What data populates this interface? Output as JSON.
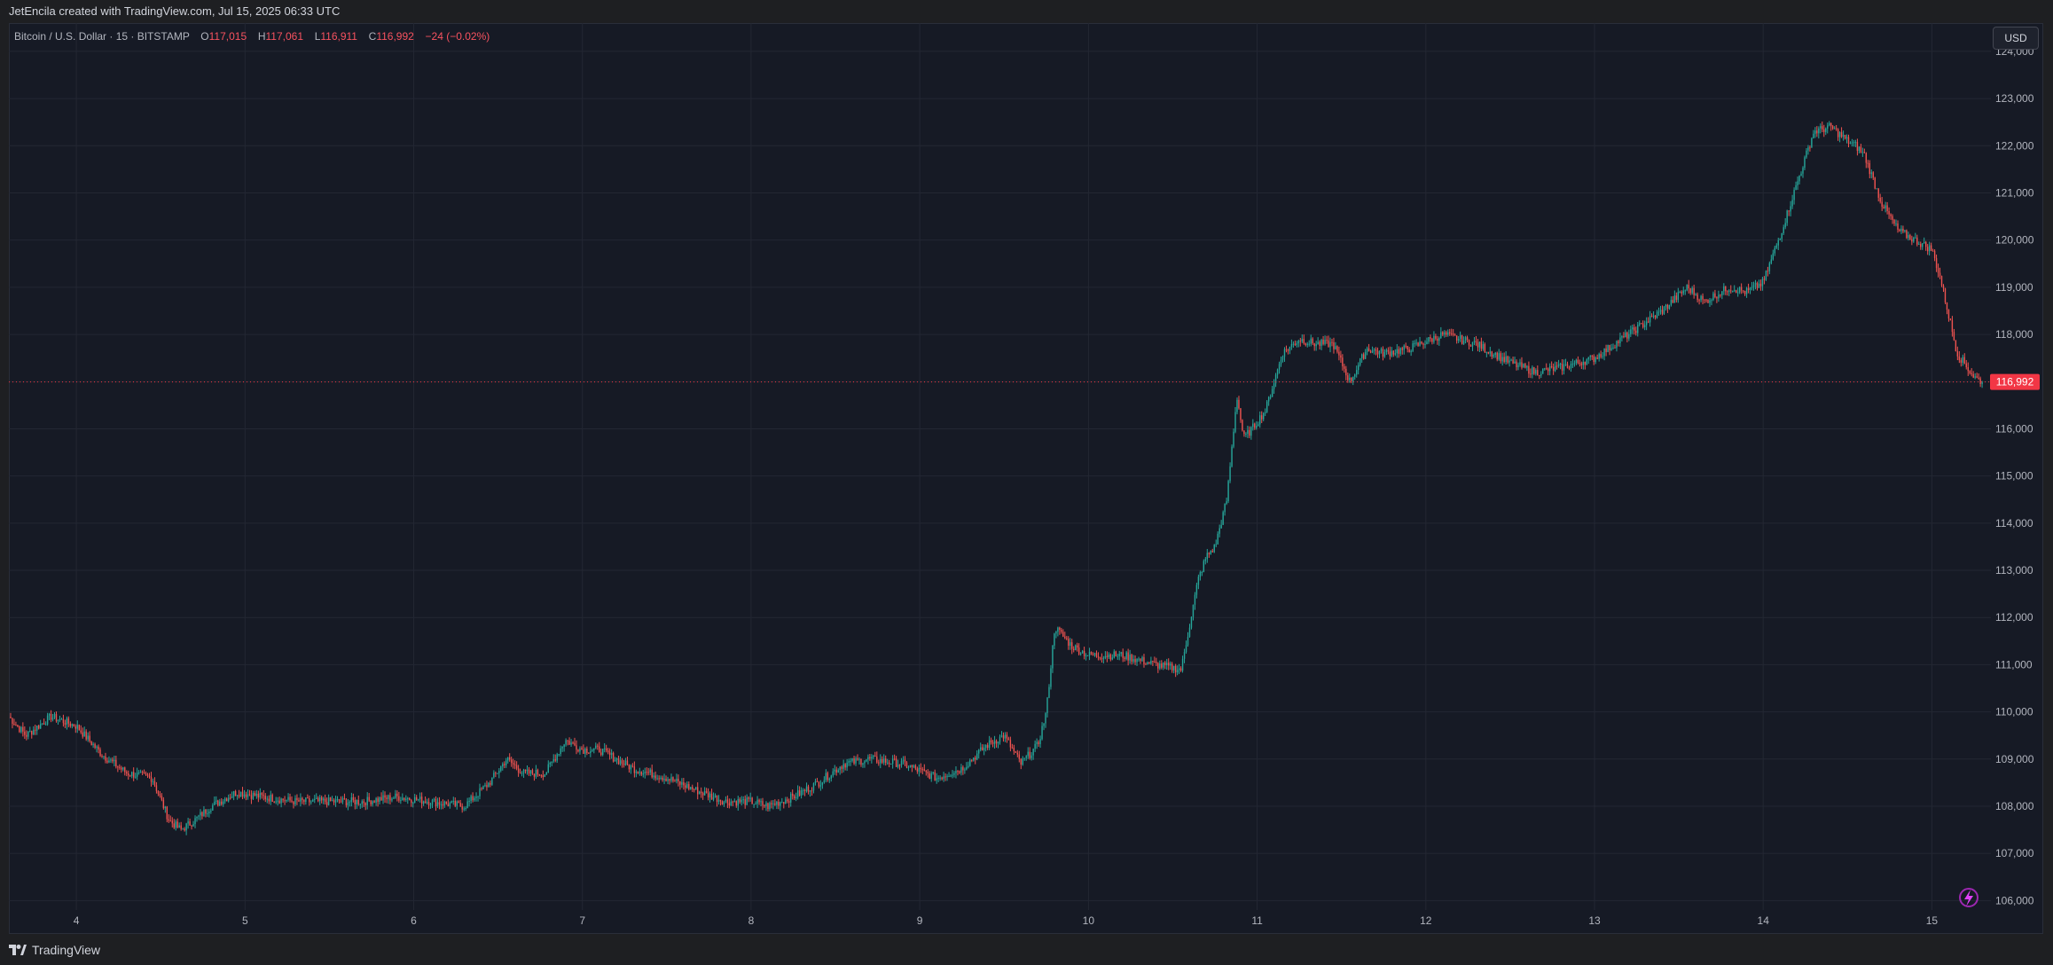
{
  "header": {
    "caption": "JetEncila created with TradingView.com, Jul 15, 2025 06:33 UTC"
  },
  "legend": {
    "symbol": "Bitcoin / U.S. Dollar · 15 · BITSTAMP",
    "open_label": "O",
    "open": "117,015",
    "high_label": "H",
    "high": "117,061",
    "low_label": "L",
    "low": "116,911",
    "close_label": "C",
    "close": "116,992",
    "change": "−24 (−0.02%)"
  },
  "currency_button": "USD",
  "footer": {
    "brand": "TradingView"
  },
  "colors": {
    "background": "#161a25",
    "up": "#26a69a",
    "down": "#ef5350",
    "grid": "#232733",
    "text": "#b2b5be",
    "last_price_tag": "#f23645"
  },
  "icons": [
    "tradingview-logo-icon",
    "lightning-icon"
  ],
  "chart_data": {
    "type": "candlestick",
    "timeframe": "15",
    "exchange": "BITSTAMP",
    "x_tick_labels": [
      "4",
      "5",
      "6",
      "7",
      "8",
      "9",
      "10",
      "11",
      "12",
      "13",
      "14",
      "15"
    ],
    "y_tick_labels": [
      "124,000",
      "123,000",
      "122,000",
      "121,000",
      "120,000",
      "119,000",
      "118,000",
      "117,000",
      "116,000",
      "115,000",
      "114,000",
      "113,000",
      "112,000",
      "111,000",
      "110,000",
      "109,000",
      "108,000",
      "107,000",
      "106,000"
    ],
    "ylim": [
      105800,
      124600
    ],
    "xlim": [
      3.6,
      15.35
    ],
    "last_price": 116992,
    "last_price_label": "116,992",
    "grid": true,
    "series": [
      {
        "x": [
          3.6,
          3.7,
          3.85,
          4.0,
          4.15,
          4.3,
          4.45,
          4.55,
          4.62,
          4.7,
          4.8,
          4.95,
          5.1,
          5.3,
          5.5,
          5.7,
          5.9,
          6.1,
          6.3,
          6.45,
          6.55,
          6.65,
          6.78,
          6.9,
          7.0,
          7.1,
          7.3,
          7.5,
          7.7,
          7.85,
          8.0,
          8.1,
          8.25,
          8.4,
          8.55,
          8.7,
          8.9,
          9.1,
          9.25,
          9.4,
          9.5,
          9.6,
          9.7,
          9.75,
          9.8,
          9.9,
          10.0,
          10.2,
          10.4,
          10.55,
          10.65,
          10.7,
          10.75,
          10.82,
          10.88,
          10.92,
          10.97,
          11.05,
          11.15,
          11.25,
          11.35,
          11.45,
          11.55,
          11.65,
          11.75,
          11.9,
          12.1,
          12.3,
          12.5,
          12.65,
          12.8,
          13.0,
          13.2,
          13.4,
          13.55,
          13.65,
          13.8,
          13.9,
          14.0,
          14.1,
          14.2,
          14.3,
          14.4,
          14.5,
          14.55,
          14.6,
          14.7,
          14.8,
          14.9,
          15.0,
          15.05,
          15.15,
          15.25,
          15.3
        ],
        "close": [
          109900,
          109500,
          109900,
          109700,
          109100,
          108700,
          108600,
          107700,
          107500,
          107700,
          108000,
          108300,
          108200,
          108100,
          108100,
          108100,
          108200,
          108100,
          108000,
          108500,
          109000,
          108700,
          108700,
          109400,
          109200,
          109200,
          108800,
          108600,
          108300,
          108100,
          108100,
          108000,
          108200,
          108500,
          108900,
          109000,
          108900,
          108600,
          108800,
          109300,
          109500,
          108900,
          109300,
          110000,
          111800,
          111400,
          111200,
          111200,
          111000,
          110900,
          112800,
          113300,
          113500,
          114500,
          116700,
          115800,
          116000,
          116400,
          117600,
          117900,
          117800,
          117800,
          117000,
          117700,
          117600,
          117700,
          118000,
          117800,
          117400,
          117200,
          117300,
          117500,
          118000,
          118500,
          119000,
          118700,
          119000,
          118900,
          119100,
          120100,
          121200,
          122300,
          122400,
          122100,
          122000,
          121800,
          120800,
          120200,
          120000,
          119800,
          119200,
          117600,
          117100,
          116992
        ]
      }
    ]
  }
}
